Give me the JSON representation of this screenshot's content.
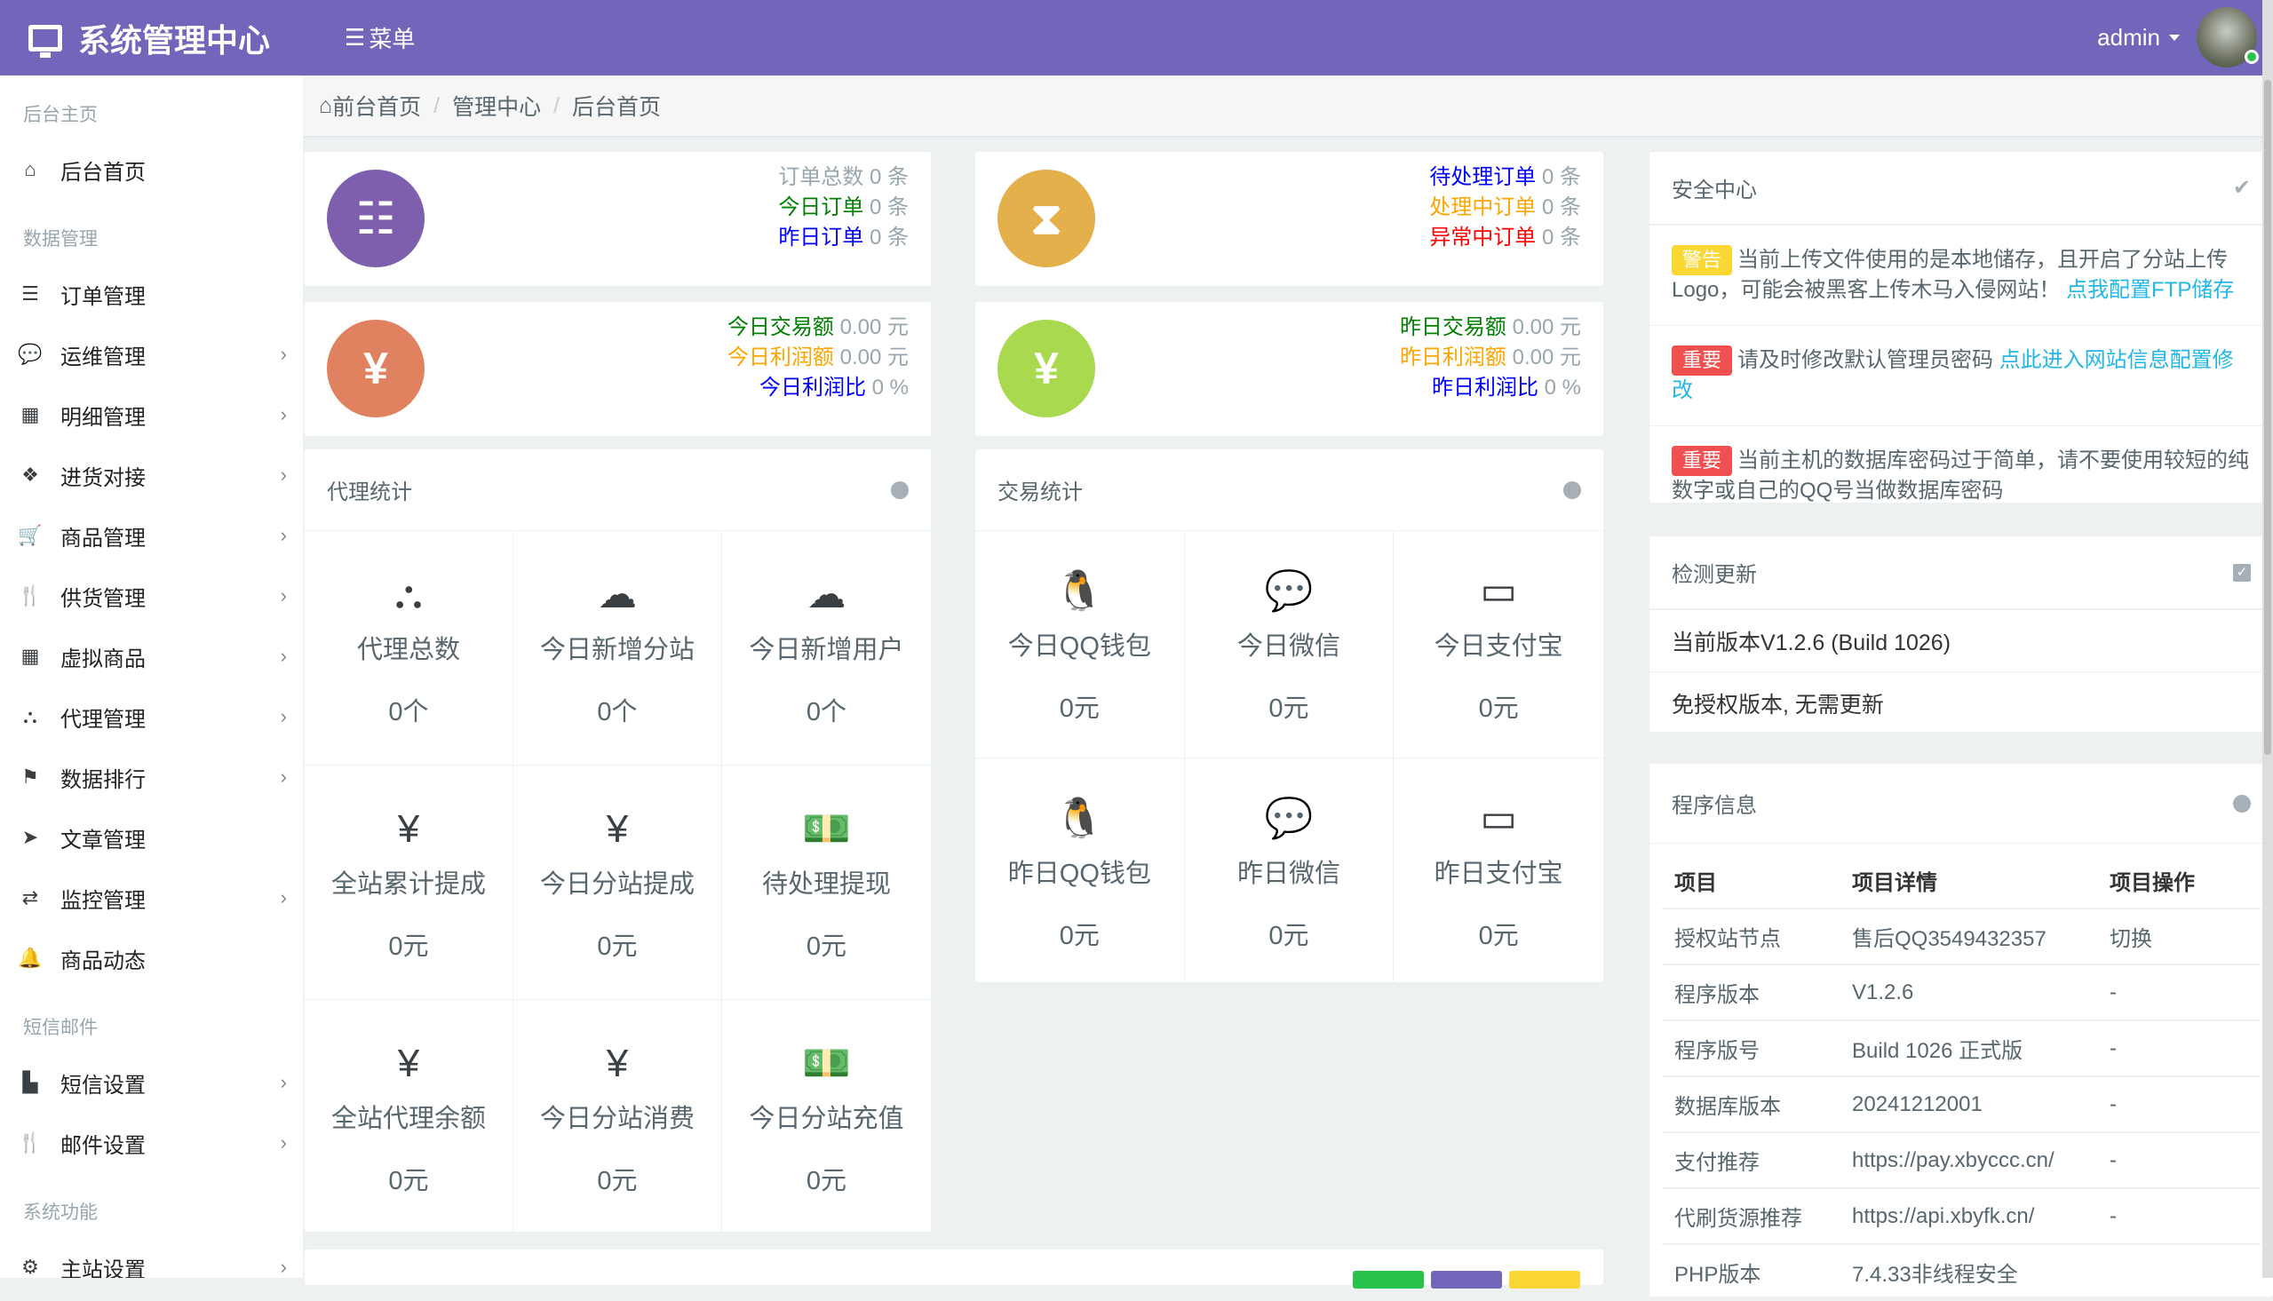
{
  "header": {
    "brand": "系统管理中心",
    "menu": "菜单",
    "user": "admin",
    "accent": "#7266ba"
  },
  "sidebar": [
    {
      "type": "head",
      "label": "后台主页"
    },
    {
      "type": "item",
      "label": "后台首页",
      "icon": "home-icon",
      "glyph": "⌂",
      "chev": false
    },
    {
      "type": "head",
      "label": "数据管理"
    },
    {
      "type": "item",
      "label": "订单管理",
      "icon": "list-icon",
      "glyph": "☰",
      "chev": false
    },
    {
      "type": "item",
      "label": "运维管理",
      "icon": "comments-icon",
      "glyph": "💬",
      "chev": true
    },
    {
      "type": "item",
      "label": "明细管理",
      "icon": "calendar-icon",
      "glyph": "▦",
      "chev": true
    },
    {
      "type": "item",
      "label": "进货对接",
      "icon": "cubes-icon",
      "glyph": "❖",
      "chev": true
    },
    {
      "type": "item",
      "label": "商品管理",
      "icon": "cart-icon",
      "glyph": "🛒",
      "chev": true
    },
    {
      "type": "item",
      "label": "供货管理",
      "icon": "cutlery-icon",
      "glyph": "🍴",
      "chev": true
    },
    {
      "type": "item",
      "label": "虚拟商品",
      "icon": "grid-icon",
      "glyph": "▦",
      "chev": true
    },
    {
      "type": "item",
      "label": "代理管理",
      "icon": "sitemap-icon",
      "glyph": "⛬",
      "chev": true
    },
    {
      "type": "item",
      "label": "数据排行",
      "icon": "flag-icon",
      "glyph": "⚑",
      "chev": true
    },
    {
      "type": "item",
      "label": "文章管理",
      "icon": "paper-plane-icon",
      "glyph": "➤",
      "chev": false
    },
    {
      "type": "item",
      "label": "监控管理",
      "icon": "retweet-icon",
      "glyph": "⇄",
      "chev": true
    },
    {
      "type": "item",
      "label": "商品动态",
      "icon": "bell-icon",
      "glyph": "🔔",
      "chev": false
    },
    {
      "type": "head",
      "label": "短信邮件"
    },
    {
      "type": "item",
      "label": "短信设置",
      "icon": "industry-icon",
      "glyph": "▙",
      "chev": true
    },
    {
      "type": "item",
      "label": "邮件设置",
      "icon": "cutlery-icon",
      "glyph": "🍴",
      "chev": true
    },
    {
      "type": "head",
      "label": "系统功能"
    },
    {
      "type": "item",
      "label": "主站设置",
      "icon": "gear-icon",
      "glyph": "⚙",
      "chev": true
    }
  ],
  "breadcrumb": [
    "前台首页",
    "管理中心",
    "后台首页"
  ],
  "summary": [
    {
      "icon": "ordered-list-icon",
      "glyph": "☷",
      "color": "#7e5fad",
      "lines": [
        {
          "k": "订单总数",
          "v": "0 条",
          "c": "#98a6ad"
        },
        {
          "k": "今日订单",
          "v": "0 条",
          "c": "#008000"
        },
        {
          "k": "昨日订单",
          "v": "0 条",
          "c": "#0000ff"
        }
      ]
    },
    {
      "icon": "hourglass-icon",
      "glyph": "⧗",
      "color": "#e4b04b",
      "lines": [
        {
          "k": "待处理订单",
          "v": "0 条",
          "c": "#0000ff"
        },
        {
          "k": "处理中订单",
          "v": "0 条",
          "c": "#ffa500"
        },
        {
          "k": "异常中订单",
          "v": "0 条",
          "c": "#ff0000"
        }
      ]
    },
    {
      "icon": "yen-icon",
      "glyph": "¥",
      "color": "#e0815f",
      "lines": [
        {
          "k": "今日交易额",
          "v": "0.00 元",
          "c": "#008000"
        },
        {
          "k": "今日利润额",
          "v": "0.00 元",
          "c": "#ffa500"
        },
        {
          "k": "今日利润比",
          "v": "0 %",
          "c": "#0000ff"
        }
      ]
    },
    {
      "icon": "yen-icon",
      "glyph": "¥",
      "color": "#a8d94f",
      "lines": [
        {
          "k": "昨日交易额",
          "v": "0.00 元",
          "c": "#008000"
        },
        {
          "k": "昨日利润额",
          "v": "0.00 元",
          "c": "#ffa500"
        },
        {
          "k": "昨日利润比",
          "v": "0 %",
          "c": "#0000ff"
        }
      ]
    }
  ],
  "agent": {
    "title": "代理统计",
    "cells": [
      {
        "icon": "sitemap-icon",
        "glyph": "⛬",
        "label": "代理总数",
        "value": "0个"
      },
      {
        "icon": "cloud-icon",
        "glyph": "☁",
        "label": "今日新增分站",
        "value": "0个"
      },
      {
        "icon": "cloud-icon",
        "glyph": "☁",
        "label": "今日新增用户",
        "value": "0个"
      },
      {
        "icon": "yen-icon",
        "glyph": "¥",
        "label": "全站累计提成",
        "value": "0元"
      },
      {
        "icon": "yen-icon",
        "glyph": "¥",
        "label": "今日分站提成",
        "value": "0元"
      },
      {
        "icon": "money-icon",
        "glyph": "💵",
        "label": "待处理提现",
        "value": "0元"
      },
      {
        "icon": "yen-icon",
        "glyph": "¥",
        "label": "全站代理余额",
        "value": "0元"
      },
      {
        "icon": "yen-icon",
        "glyph": "¥",
        "label": "今日分站消费",
        "value": "0元"
      },
      {
        "icon": "money-icon",
        "glyph": "💵",
        "label": "今日分站充值",
        "value": "0元"
      }
    ]
  },
  "trade": {
    "title": "交易统计",
    "cells": [
      {
        "icon": "qq-icon",
        "glyph": "🐧",
        "label": "今日QQ钱包",
        "value": "0元"
      },
      {
        "icon": "wechat-icon",
        "glyph": "💬",
        "label": "今日微信",
        "value": "0元"
      },
      {
        "icon": "credit-card-icon",
        "glyph": "▭",
        "label": "今日支付宝",
        "value": "0元"
      },
      {
        "icon": "qq-icon",
        "glyph": "🐧",
        "label": "昨日QQ钱包",
        "value": "0元"
      },
      {
        "icon": "wechat-icon",
        "glyph": "💬",
        "label": "昨日微信",
        "value": "0元"
      },
      {
        "icon": "credit-card-icon",
        "glyph": "▭",
        "label": "昨日支付宝",
        "value": "0元"
      }
    ]
  },
  "security": {
    "title": "安全中心",
    "alerts": [
      {
        "badge": "警告",
        "badge_color": "#fad733",
        "text": "当前上传文件使用的是本地储存，且开启了分站上传Logo，可能会被黑客上传木马入侵网站！",
        "link": "点我配置FTP储存"
      },
      {
        "badge": "重要",
        "badge_color": "#f05050",
        "text": "请及时修改默认管理员密码",
        "link": "点此进入网站信息配置修改"
      },
      {
        "badge": "重要",
        "badge_color": "#f05050",
        "text": "当前主机的数据库密码过于简单，请不要使用较短的纯数字或自己的QQ号当做数据库密码",
        "link": ""
      }
    ]
  },
  "update": {
    "title": "检测更新",
    "version": "当前版本V1.2.6 (Build 1026)",
    "status": "免授权版本, 无需更新"
  },
  "program": {
    "title": "程序信息",
    "columns": [
      "项目",
      "项目详情",
      "项目操作"
    ],
    "rows": [
      [
        "授权站节点",
        "售后QQ3549432357",
        "切换"
      ],
      [
        "程序版本",
        "V1.2.6",
        "-"
      ],
      [
        "程序版号",
        "Build 1026 正式版",
        "-"
      ],
      [
        "数据库版本",
        "20241212001",
        "-"
      ],
      [
        "支付推荐",
        "https://pay.xbyccc.cn/",
        "-"
      ],
      [
        "代刷货源推荐",
        "https://api.xbyfk.cn/",
        "-"
      ],
      [
        "PHP版本",
        "7.4.33非线程安全",
        ""
      ]
    ]
  },
  "bottom_buttons": [
    "#27c24c",
    "#7266ba",
    "#fad733"
  ]
}
